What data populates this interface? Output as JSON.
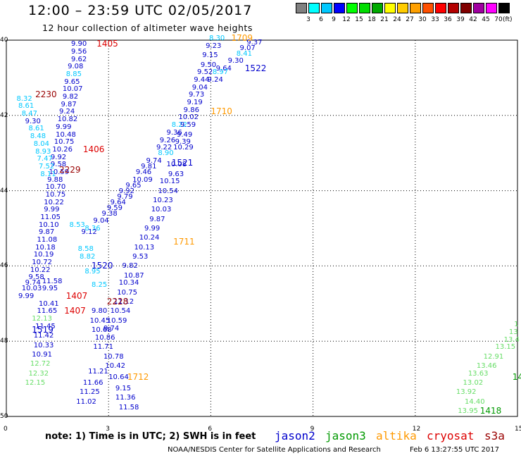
{
  "header": {
    "title": "12:00 – 23:59 UTC 02/05/2017",
    "subtitle": "12 hour collection of altimeter wave heights"
  },
  "color_scale": {
    "unit": "(ft)",
    "bins": [
      {
        "label": "",
        "color": "#808080"
      },
      {
        "label": "3",
        "color": "#00ffff"
      },
      {
        "label": "6",
        "color": "#00c8ff"
      },
      {
        "label": "9",
        "color": "#0000ff"
      },
      {
        "label": "12",
        "color": "#00ff00"
      },
      {
        "label": "15",
        "color": "#00dd00"
      },
      {
        "label": "18",
        "color": "#00aa00"
      },
      {
        "label": "21",
        "color": "#ffff00"
      },
      {
        "label": "24",
        "color": "#ffcc00"
      },
      {
        "label": "27",
        "color": "#ffa000"
      },
      {
        "label": "30",
        "color": "#ff5000"
      },
      {
        "label": "33",
        "color": "#ff0000"
      },
      {
        "label": "36",
        "color": "#b40000"
      },
      {
        "label": "39",
        "color": "#800000"
      },
      {
        "label": "42",
        "color": "#a000a0"
      },
      {
        "label": "45",
        "color": "#ff00ff"
      },
      {
        "label": "70",
        "color": "#000000"
      }
    ]
  },
  "axes": {
    "x_ticks": [
      "0",
      "3",
      "6",
      "9",
      "12",
      "15"
    ],
    "y_ticks": [
      "40",
      "42",
      "44",
      "46",
      "48",
      "50"
    ]
  },
  "legend": {
    "note": "note:  1) Time is in UTC;  2) SWH is in feet",
    "satellites": [
      {
        "name": "jason2",
        "color": "#0000cc"
      },
      {
        "name": "jason3",
        "color": "#009900"
      },
      {
        "name": "altika",
        "color": "#ff9900"
      },
      {
        "name": "cryosat",
        "color": "#dd0000"
      },
      {
        "name": "s3a",
        "color": "#990000"
      }
    ]
  },
  "footer": {
    "credit": "NOAA/NESDIS Center for Satellite Applications and Research",
    "timestamp": "Feb  6 13:27:55 UTC 2017"
  },
  "pass_times": [
    {
      "text": "1405",
      "color": "#dd0000",
      "x": 2.65,
      "y": 40.1
    },
    {
      "text": "1709",
      "color": "#ff9900",
      "x": 6.6,
      "y": 39.95
    },
    {
      "text": "1522",
      "color": "#0000cc",
      "x": 7.0,
      "y": 40.75
    },
    {
      "text": "1710",
      "color": "#ff9900",
      "x": 6.0,
      "y": 41.9
    },
    {
      "text": "2230",
      "color": "#990000",
      "x": 0.85,
      "y": 41.45
    },
    {
      "text": "1406",
      "color": "#dd0000",
      "x": 2.25,
      "y": 42.9
    },
    {
      "text": "2229",
      "color": "#990000",
      "x": 1.55,
      "y": 43.45
    },
    {
      "text": "1521",
      "color": "#0000cc",
      "x": 4.85,
      "y": 43.25
    },
    {
      "text": "1711",
      "color": "#ff9900",
      "x": 4.9,
      "y": 45.35
    },
    {
      "text": "1520",
      "color": "#0000cc",
      "x": 2.5,
      "y": 46.0
    },
    {
      "text": "1407",
      "color": "#dd0000",
      "x": 1.75,
      "y": 46.8
    },
    {
      "text": "2228",
      "color": "#990000",
      "x": 2.95,
      "y": 46.95
    },
    {
      "text": "1407",
      "color": "#dd0000",
      "x": 1.7,
      "y": 47.2
    },
    {
      "text": "1519",
      "color": "#0000cc",
      "x": 0.75,
      "y": 47.7
    },
    {
      "text": "1712",
      "color": "#ff9900",
      "x": 3.55,
      "y": 48.95
    },
    {
      "text": "1418",
      "color": "#009900",
      "x": 13.9,
      "y": 49.85
    },
    {
      "text": "14",
      "color": "#009900",
      "x": 14.85,
      "y": 48.95
    }
  ],
  "wave_heights": [
    {
      "text": "9.90",
      "color": "#0000cc",
      "x": 1.9,
      "y": 40.1
    },
    {
      "text": "9.56",
      "color": "#0000cc",
      "x": 1.9,
      "y": 40.3
    },
    {
      "text": "9.62",
      "color": "#0000cc",
      "x": 1.9,
      "y": 40.5
    },
    {
      "text": "9.08",
      "color": "#0000cc",
      "x": 1.8,
      "y": 40.7
    },
    {
      "text": "8.85",
      "color": "#00c8ff",
      "x": 1.75,
      "y": 40.9
    },
    {
      "text": "9.65",
      "color": "#0000cc",
      "x": 1.7,
      "y": 41.1
    },
    {
      "text": "10.07",
      "color": "#0000cc",
      "x": 1.65,
      "y": 41.3
    },
    {
      "text": "9.82",
      "color": "#0000cc",
      "x": 1.65,
      "y": 41.5
    },
    {
      "text": "9.87",
      "color": "#0000cc",
      "x": 1.6,
      "y": 41.7
    },
    {
      "text": "9.24",
      "color": "#0000cc",
      "x": 1.55,
      "y": 41.9
    },
    {
      "text": "10.82",
      "color": "#0000cc",
      "x": 1.5,
      "y": 42.1
    },
    {
      "text": "9.99",
      "color": "#0000cc",
      "x": 1.45,
      "y": 42.3
    },
    {
      "text": "10.48",
      "color": "#0000cc",
      "x": 1.45,
      "y": 42.5
    },
    {
      "text": "10.75",
      "color": "#0000cc",
      "x": 1.4,
      "y": 42.7
    },
    {
      "text": "10.26",
      "color": "#0000cc",
      "x": 1.35,
      "y": 42.9
    },
    {
      "text": "9.92",
      "color": "#0000cc",
      "x": 1.3,
      "y": 43.1
    },
    {
      "text": "9.58",
      "color": "#0000cc",
      "x": 1.3,
      "y": 43.3
    },
    {
      "text": "10.59",
      "color": "#0000cc",
      "x": 1.25,
      "y": 43.5
    },
    {
      "text": "9.88",
      "color": "#0000cc",
      "x": 1.2,
      "y": 43.7
    },
    {
      "text": "10.70",
      "color": "#0000cc",
      "x": 1.15,
      "y": 43.9
    },
    {
      "text": "10.75",
      "color": "#0000cc",
      "x": 1.15,
      "y": 44.1
    },
    {
      "text": "10.22",
      "color": "#0000cc",
      "x": 1.1,
      "y": 44.3
    },
    {
      "text": "9.99",
      "color": "#0000cc",
      "x": 1.1,
      "y": 44.5
    },
    {
      "text": "11.05",
      "color": "#0000cc",
      "x": 1.0,
      "y": 44.7
    },
    {
      "text": "10.10",
      "color": "#0000cc",
      "x": 0.95,
      "y": 44.9
    },
    {
      "text": "9.87",
      "color": "#0000cc",
      "x": 0.95,
      "y": 45.1
    },
    {
      "text": "11.08",
      "color": "#0000cc",
      "x": 0.9,
      "y": 45.3
    },
    {
      "text": "10.18",
      "color": "#0000cc",
      "x": 0.85,
      "y": 45.5
    },
    {
      "text": "10.19",
      "color": "#0000cc",
      "x": 0.8,
      "y": 45.7
    },
    {
      "text": "10.72",
      "color": "#0000cc",
      "x": 0.75,
      "y": 45.9
    },
    {
      "text": "10.22",
      "color": "#0000cc",
      "x": 0.7,
      "y": 46.1
    },
    {
      "text": "9.58",
      "color": "#0000cc",
      "x": 0.65,
      "y": 46.3
    },
    {
      "text": "9.74",
      "color": "#0000cc",
      "x": 0.55,
      "y": 46.45
    },
    {
      "text": "10.03",
      "color": "#0000cc",
      "x": 0.45,
      "y": 46.6
    },
    {
      "text": "9.99",
      "color": "#0000cc",
      "x": 0.35,
      "y": 46.8
    },
    {
      "text": "11.58",
      "color": "#0000cc",
      "x": 1.05,
      "y": 46.4
    },
    {
      "text": "9.95",
      "color": "#0000cc",
      "x": 1.05,
      "y": 46.6
    },
    {
      "text": "10.41",
      "color": "#0000cc",
      "x": 0.95,
      "y": 47.0
    },
    {
      "text": "11.65",
      "color": "#0000cc",
      "x": 0.9,
      "y": 47.2
    },
    {
      "text": "11.45",
      "color": "#0000cc",
      "x": 0.85,
      "y": 47.6
    },
    {
      "text": "11.42",
      "color": "#0000cc",
      "x": 0.8,
      "y": 47.85
    },
    {
      "text": "10.33",
      "color": "#0000cc",
      "x": 0.8,
      "y": 48.1
    },
    {
      "text": "10.91",
      "color": "#0000cc",
      "x": 0.75,
      "y": 48.35
    },
    {
      "text": "8.32",
      "color": "#00c8ff",
      "x": 0.3,
      "y": 41.55
    },
    {
      "text": "8.61",
      "color": "#00c8ff",
      "x": 0.35,
      "y": 41.75
    },
    {
      "text": "8.47",
      "color": "#00c8ff",
      "x": 0.45,
      "y": 41.95
    },
    {
      "text": "9.30",
      "color": "#0000cc",
      "x": 0.55,
      "y": 42.15
    },
    {
      "text": "8.61",
      "color": "#00c8ff",
      "x": 0.65,
      "y": 42.35
    },
    {
      "text": "8.48",
      "color": "#00c8ff",
      "x": 0.7,
      "y": 42.55
    },
    {
      "text": "8.04",
      "color": "#00c8ff",
      "x": 0.8,
      "y": 42.75
    },
    {
      "text": "8.93",
      "color": "#00c8ff",
      "x": 0.85,
      "y": 42.95
    },
    {
      "text": "7.47",
      "color": "#00c8ff",
      "x": 0.9,
      "y": 43.15
    },
    {
      "text": "7.52",
      "color": "#00c8ff",
      "x": 0.95,
      "y": 43.35
    },
    {
      "text": "8.11",
      "color": "#00c8ff",
      "x": 1.0,
      "y": 43.55
    },
    {
      "text": "8.53",
      "color": "#00c8ff",
      "x": 1.85,
      "y": 44.9
    },
    {
      "text": "8.36",
      "color": "#00c8ff",
      "x": 2.3,
      "y": 45.0
    },
    {
      "text": "8.58",
      "color": "#00c8ff",
      "x": 2.1,
      "y": 45.55
    },
    {
      "text": "8.82",
      "color": "#00c8ff",
      "x": 2.15,
      "y": 45.75
    },
    {
      "text": "8.95",
      "color": "#00c8ff",
      "x": 2.3,
      "y": 46.15
    },
    {
      "text": "8.25",
      "color": "#00c8ff",
      "x": 2.5,
      "y": 46.5
    },
    {
      "text": "9.12",
      "color": "#0000cc",
      "x": 2.2,
      "y": 45.1
    },
    {
      "text": "9.04",
      "color": "#0000cc",
      "x": 2.55,
      "y": 44.8
    },
    {
      "text": "9.38",
      "color": "#0000cc",
      "x": 2.8,
      "y": 44.6
    },
    {
      "text": "9.59",
      "color": "#0000cc",
      "x": 2.95,
      "y": 44.45
    },
    {
      "text": "9.64",
      "color": "#0000cc",
      "x": 3.05,
      "y": 44.3
    },
    {
      "text": "9.79",
      "color": "#0000cc",
      "x": 3.25,
      "y": 44.15
    },
    {
      "text": "9.92",
      "color": "#0000cc",
      "x": 3.3,
      "y": 44.0
    },
    {
      "text": "9.65",
      "color": "#0000cc",
      "x": 3.5,
      "y": 43.85
    },
    {
      "text": "10.09",
      "color": "#0000cc",
      "x": 3.7,
      "y": 43.7
    },
    {
      "text": "9.46",
      "color": "#0000cc",
      "x": 3.8,
      "y": 43.5
    },
    {
      "text": "9.81",
      "color": "#0000cc",
      "x": 3.95,
      "y": 43.35
    },
    {
      "text": "9.74",
      "color": "#0000cc",
      "x": 4.1,
      "y": 43.2
    },
    {
      "text": "8.90",
      "color": "#00c8ff",
      "x": 4.45,
      "y": 43.0
    },
    {
      "text": "9.22",
      "color": "#0000cc",
      "x": 4.4,
      "y": 42.85
    },
    {
      "text": "10.29",
      "color": "#0000cc",
      "x": 4.9,
      "y": 42.85
    },
    {
      "text": "10.08",
      "color": "#0000cc",
      "x": 4.7,
      "y": 43.3
    },
    {
      "text": "9.63",
      "color": "#0000cc",
      "x": 4.75,
      "y": 43.55
    },
    {
      "text": "10.15",
      "color": "#0000cc",
      "x": 4.5,
      "y": 43.75
    },
    {
      "text": "10.54",
      "color": "#0000cc",
      "x": 4.45,
      "y": 44.0
    },
    {
      "text": "10.23",
      "color": "#0000cc",
      "x": 4.3,
      "y": 44.25
    },
    {
      "text": "10.03",
      "color": "#0000cc",
      "x": 4.25,
      "y": 44.5
    },
    {
      "text": "9.87",
      "color": "#0000cc",
      "x": 4.2,
      "y": 44.75
    },
    {
      "text": "9.99",
      "color": "#0000cc",
      "x": 4.05,
      "y": 45.0
    },
    {
      "text": "10.24",
      "color": "#0000cc",
      "x": 3.9,
      "y": 45.25
    },
    {
      "text": "10.13",
      "color": "#0000cc",
      "x": 3.75,
      "y": 45.5
    },
    {
      "text": "9.53",
      "color": "#0000cc",
      "x": 3.7,
      "y": 45.75
    },
    {
      "text": "9.82",
      "color": "#0000cc",
      "x": 3.4,
      "y": 46.0
    },
    {
      "text": "10.87",
      "color": "#0000cc",
      "x": 3.45,
      "y": 46.25
    },
    {
      "text": "10.34",
      "color": "#0000cc",
      "x": 3.3,
      "y": 46.45
    },
    {
      "text": "10.75",
      "color": "#0000cc",
      "x": 3.25,
      "y": 46.7
    },
    {
      "text": "11.12",
      "color": "#0000cc",
      "x": 3.15,
      "y": 46.95
    },
    {
      "text": "10.54",
      "color": "#0000cc",
      "x": 3.05,
      "y": 47.2
    },
    {
      "text": "10.59",
      "color": "#0000cc",
      "x": 2.95,
      "y": 47.45
    },
    {
      "text": "9.74",
      "color": "#0000cc",
      "x": 2.85,
      "y": 47.65
    },
    {
      "text": "9.80",
      "color": "#0000cc",
      "x": 2.5,
      "y": 47.2
    },
    {
      "text": "10.45",
      "color": "#0000cc",
      "x": 2.45,
      "y": 47.45
    },
    {
      "text": "10.68",
      "color": "#0000cc",
      "x": 2.5,
      "y": 47.7
    },
    {
      "text": "10.86",
      "color": "#0000cc",
      "x": 2.6,
      "y": 47.9
    },
    {
      "text": "11.71",
      "color": "#0000cc",
      "x": 2.55,
      "y": 48.15
    },
    {
      "text": "10.78",
      "color": "#0000cc",
      "x": 2.85,
      "y": 48.4
    },
    {
      "text": "10.42",
      "color": "#0000cc",
      "x": 2.9,
      "y": 48.65
    },
    {
      "text": "11.21",
      "color": "#0000cc",
      "x": 2.4,
      "y": 48.8
    },
    {
      "text": "11.66",
      "color": "#0000cc",
      "x": 2.25,
      "y": 49.1
    },
    {
      "text": "11.25",
      "color": "#0000cc",
      "x": 2.15,
      "y": 49.35
    },
    {
      "text": "11.02",
      "color": "#0000cc",
      "x": 2.05,
      "y": 49.6
    },
    {
      "text": "10.64",
      "color": "#0000cc",
      "x": 3.0,
      "y": 48.95
    },
    {
      "text": "9.15",
      "color": "#0000cc",
      "x": 3.2,
      "y": 49.25
    },
    {
      "text": "11.36",
      "color": "#0000cc",
      "x": 3.2,
      "y": 49.5
    },
    {
      "text": "11.58",
      "color": "#0000cc",
      "x": 3.3,
      "y": 49.75
    },
    {
      "text": "8.30",
      "color": "#00c8ff",
      "x": 5.95,
      "y": 39.95
    },
    {
      "text": "9.37",
      "color": "#0000cc",
      "x": 7.05,
      "y": 40.05
    },
    {
      "text": "9.23",
      "color": "#0000cc",
      "x": 5.85,
      "y": 40.15
    },
    {
      "text": "9.07",
      "color": "#0000cc",
      "x": 6.85,
      "y": 40.2
    },
    {
      "text": "8.41",
      "color": "#00c8ff",
      "x": 6.75,
      "y": 40.35
    },
    {
      "text": "9.15",
      "color": "#0000cc",
      "x": 5.75,
      "y": 40.4
    },
    {
      "text": "9.30",
      "color": "#0000cc",
      "x": 6.5,
      "y": 40.55
    },
    {
      "text": "9.50",
      "color": "#0000cc",
      "x": 5.7,
      "y": 40.65
    },
    {
      "text": "9.64",
      "color": "#0000cc",
      "x": 6.15,
      "y": 40.75
    },
    {
      "text": "9.52",
      "color": "#0000cc",
      "x": 5.6,
      "y": 40.85
    },
    {
      "text": "8.97",
      "color": "#00c8ff",
      "x": 6.05,
      "y": 40.85
    },
    {
      "text": "9.24",
      "color": "#0000cc",
      "x": 5.9,
      "y": 41.05
    },
    {
      "text": "9.44",
      "color": "#0000cc",
      "x": 5.5,
      "y": 41.05
    },
    {
      "text": "9.04",
      "color": "#0000cc",
      "x": 5.45,
      "y": 41.25
    },
    {
      "text": "9.73",
      "color": "#0000cc",
      "x": 5.35,
      "y": 41.45
    },
    {
      "text": "9.19",
      "color": "#0000cc",
      "x": 5.3,
      "y": 41.65
    },
    {
      "text": "9.86",
      "color": "#0000cc",
      "x": 5.2,
      "y": 41.85
    },
    {
      "text": "10.02",
      "color": "#0000cc",
      "x": 5.05,
      "y": 42.05
    },
    {
      "text": "8.22",
      "color": "#00c8ff",
      "x": 4.85,
      "y": 42.25
    },
    {
      "text": "9.59",
      "color": "#0000cc",
      "x": 5.1,
      "y": 42.25
    },
    {
      "text": "9.36",
      "color": "#0000cc",
      "x": 4.7,
      "y": 42.45
    },
    {
      "text": "9.49",
      "color": "#0000cc",
      "x": 5.0,
      "y": 42.5
    },
    {
      "text": "9.26",
      "color": "#0000cc",
      "x": 4.5,
      "y": 42.65
    },
    {
      "text": "9.39",
      "color": "#0000cc",
      "x": 4.95,
      "y": 42.7
    },
    {
      "text": "12.13",
      "color": "#66dd66",
      "x": 0.75,
      "y": 47.4
    },
    {
      "text": "12.72",
      "color": "#66dd66",
      "x": 0.7,
      "y": 48.6
    },
    {
      "text": "12.32",
      "color": "#66dd66",
      "x": 0.65,
      "y": 48.85
    },
    {
      "text": "12.15",
      "color": "#66dd66",
      "x": 0.55,
      "y": 49.1
    },
    {
      "text": "13.95",
      "color": "#66dd66",
      "x": 13.25,
      "y": 49.85
    },
    {
      "text": "14.40",
      "color": "#66dd66",
      "x": 13.45,
      "y": 49.6
    },
    {
      "text": "13.92",
      "color": "#66dd66",
      "x": 13.2,
      "y": 49.35
    },
    {
      "text": "13.02",
      "color": "#66dd66",
      "x": 13.4,
      "y": 49.1
    },
    {
      "text": "13.63",
      "color": "#66dd66",
      "x": 13.55,
      "y": 48.85
    },
    {
      "text": "13.46",
      "color": "#66dd66",
      "x": 13.8,
      "y": 48.65
    },
    {
      "text": "12.91",
      "color": "#66dd66",
      "x": 14.0,
      "y": 48.4
    },
    {
      "text": "13.15",
      "color": "#66dd66",
      "x": 14.35,
      "y": 48.15
    },
    {
      "text": "13.4",
      "color": "#66dd66",
      "x": 14.6,
      "y": 47.95
    },
    {
      "text": "13",
      "color": "#66dd66",
      "x": 14.75,
      "y": 47.75
    },
    {
      "text": "1",
      "color": "#66dd66",
      "x": 14.9,
      "y": 47.55
    }
  ]
}
